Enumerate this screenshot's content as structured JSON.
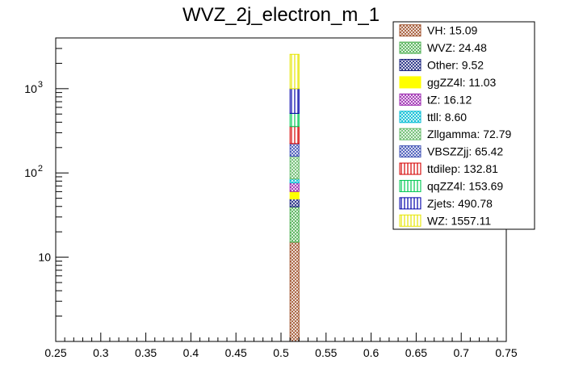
{
  "chart_data": {
    "type": "bar",
    "title": "WVZ_2j_electron_m_1",
    "xlabel": "",
    "ylabel": "",
    "xlim": [
      0.25,
      0.75
    ],
    "ylim": [
      1,
      4000
    ],
    "yscale": "log",
    "stacked": true,
    "bin": [
      0.51,
      0.52
    ],
    "x_ticks": [
      "0.25",
      "0.3",
      "0.35",
      "0.4",
      "0.45",
      "0.5",
      "0.55",
      "0.6",
      "0.65",
      "0.7",
      "0.75"
    ],
    "y_ticks": [
      {
        "value": 10,
        "label": "10"
      },
      {
        "value": 100,
        "label": "10",
        "exp": "2"
      },
      {
        "value": 1000,
        "label": "10",
        "exp": "3"
      }
    ],
    "legend_position": "top-right",
    "series": [
      {
        "name": "VH",
        "label": "VH: 15.09",
        "value": 15.09,
        "color": "#a0522d",
        "pattern": "cross"
      },
      {
        "name": "WVZ",
        "label": "WVZ: 24.48",
        "value": 24.48,
        "color": "#4caf50",
        "pattern": "cross"
      },
      {
        "name": "Other",
        "label": "Other: 9.52",
        "value": 9.52,
        "color": "#1a237e",
        "pattern": "cross"
      },
      {
        "name": "ggZZ4l",
        "label": "ggZZ4l: 11.03",
        "value": 11.03,
        "color": "#ffff00",
        "pattern": "solid"
      },
      {
        "name": "tZ",
        "label": "tZ: 16.12",
        "value": 16.12,
        "color": "#9c27b0",
        "pattern": "cross"
      },
      {
        "name": "ttll",
        "label": "ttll: 8.60",
        "value": 8.6,
        "color": "#00bcd4",
        "pattern": "cross"
      },
      {
        "name": "Zllgamma",
        "label": "Zllgamma: 72.79",
        "value": 72.79,
        "color": "#66bb6a",
        "pattern": "cross"
      },
      {
        "name": "VBSZZjj",
        "label": "VBSZZjj: 65.42",
        "value": 65.42,
        "color": "#3f51b5",
        "pattern": "cross"
      },
      {
        "name": "ttdilep",
        "label": "ttdilep: 132.81",
        "value": 132.81,
        "color": "#d50000",
        "pattern": "vlines"
      },
      {
        "name": "qqZZ4l",
        "label": "qqZZ4l: 153.69",
        "value": 153.69,
        "color": "#00c853",
        "pattern": "vlines"
      },
      {
        "name": "Zjets",
        "label": "Zjets: 490.78",
        "value": 490.78,
        "color": "#0000aa",
        "pattern": "vlines"
      },
      {
        "name": "WZ",
        "label": "WZ: 1557.11",
        "value": 1557.11,
        "color": "#e6e600",
        "pattern": "vlines"
      }
    ]
  }
}
